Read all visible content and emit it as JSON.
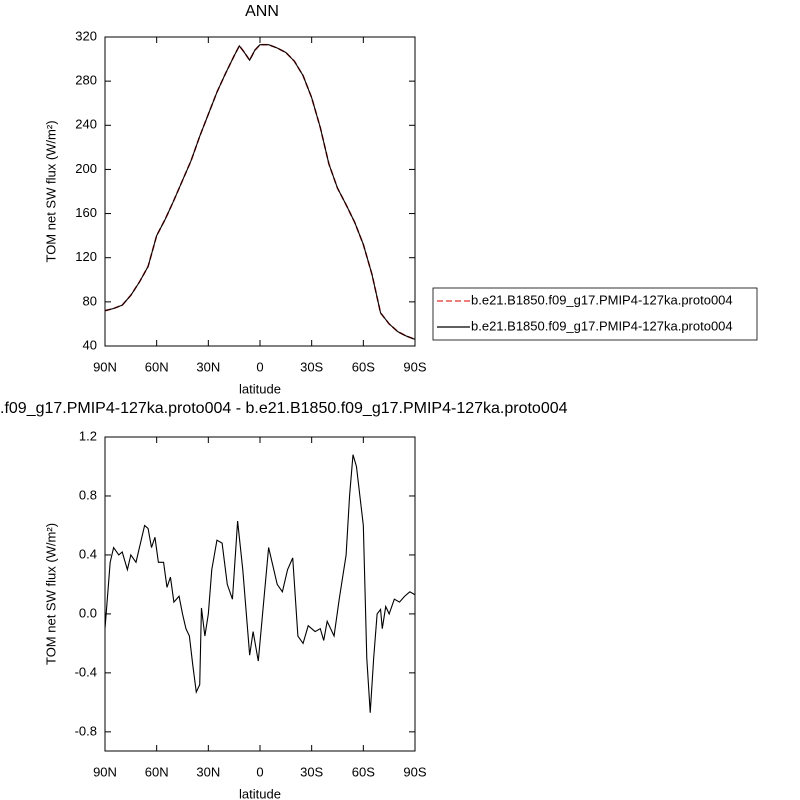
{
  "chart_data": [
    {
      "type": "line",
      "title": "ANN",
      "xlabel": "latitude",
      "ylabel": "TOM net SW flux (W/m²)",
      "x": [
        90,
        85,
        80,
        75,
        70,
        65,
        60,
        55,
        50,
        45,
        40,
        35,
        30,
        25,
        20,
        15,
        12,
        10,
        6,
        3,
        0,
        -5,
        -10,
        -15,
        -20,
        -25,
        -30,
        -35,
        -40,
        -45,
        -50,
        -55,
        -60,
        -65,
        -70,
        -75,
        -80,
        -85,
        -90
      ],
      "series": [
        {
          "name": "b.e21.B1850.f09_g17.PMIP4-127ka.proto004",
          "color": "#e03030",
          "dash": true,
          "values": [
            72,
            74,
            77,
            86,
            98,
            112,
            140,
            155,
            172,
            190,
            208,
            230,
            250,
            270,
            287,
            303,
            312,
            308,
            299,
            308,
            313,
            313,
            310,
            306,
            298,
            285,
            265,
            238,
            205,
            183,
            168,
            152,
            132,
            105,
            70,
            60,
            53,
            49,
            46
          ]
        },
        {
          "name": "b.e21.B1850.f09_g17.PMIP4-127ka.proto004",
          "color": "#000000",
          "dash": false,
          "values": [
            72,
            74,
            77,
            86,
            98,
            112,
            140,
            155,
            172,
            190,
            208,
            230,
            250,
            270,
            287,
            303,
            312,
            308,
            299,
            308,
            313,
            313,
            310,
            306,
            298,
            285,
            265,
            238,
            205,
            183,
            168,
            152,
            132,
            105,
            70,
            60,
            53,
            49,
            46
          ]
        }
      ],
      "xlim": [
        90,
        -90
      ],
      "xticks": [
        {
          "value": 90,
          "label": "90N"
        },
        {
          "value": 60,
          "label": "60N"
        },
        {
          "value": 30,
          "label": "30N"
        },
        0,
        {
          "value": -30,
          "label": "30S"
        },
        {
          "value": -60,
          "label": "60S"
        },
        {
          "value": -90,
          "label": "90S"
        }
      ],
      "ylim": [
        40,
        320
      ],
      "yticks": [
        40,
        80,
        120,
        160,
        200,
        240,
        280,
        320
      ],
      "legend": "right"
    },
    {
      "type": "line",
      "title": ".f09_g17.PMIP4-127ka.proto004 - b.e21.B1850.f09_g17.PMIP4-127ka.proto004",
      "xlabel": "latitude",
      "ylabel": "TOM net SW flux (W/m²)",
      "x": [
        90,
        87,
        85,
        82,
        80,
        77,
        75,
        72,
        70,
        67,
        65,
        63,
        61,
        59,
        56,
        54,
        52,
        50,
        47,
        45,
        43,
        41,
        39,
        37,
        35,
        34,
        32,
        30,
        28,
        25,
        22,
        19,
        16,
        13,
        10,
        6,
        4,
        1,
        -5,
        -7,
        -10,
        -13,
        -16,
        -19,
        -22,
        -25,
        -28,
        -32,
        -35,
        -37,
        -39,
        -43,
        -46,
        -50,
        -52,
        -54,
        -56,
        -59,
        -60,
        -62,
        -64,
        -66,
        -68,
        -70,
        -71,
        -73,
        -75,
        -78,
        -81,
        -84,
        -87,
        -90
      ],
      "series": [
        {
          "color": "#000000",
          "dash": false,
          "values": [
            -0.1,
            0.35,
            0.45,
            0.4,
            0.42,
            0.3,
            0.4,
            0.35,
            0.45,
            0.6,
            0.58,
            0.45,
            0.52,
            0.35,
            0.35,
            0.18,
            0.25,
            0.08,
            0.12,
            0.0,
            -0.1,
            -0.15,
            -0.35,
            -0.53,
            -0.48,
            0.04,
            -0.15,
            0.0,
            0.3,
            0.5,
            0.48,
            0.2,
            0.1,
            0.63,
            0.3,
            -0.28,
            -0.12,
            -0.32,
            0.45,
            0.35,
            0.2,
            0.15,
            0.3,
            0.38,
            -0.15,
            -0.2,
            -0.08,
            -0.12,
            -0.1,
            -0.18,
            -0.05,
            -0.15,
            0.1,
            0.4,
            0.8,
            1.08,
            1.0,
            0.7,
            0.6,
            -0.3,
            -0.67,
            -0.3,
            0.0,
            0.03,
            -0.1,
            0.05,
            0.0,
            0.1,
            0.08,
            0.12,
            0.15,
            0.13
          ]
        }
      ],
      "xlim": [
        90,
        -90
      ],
      "xticks": [
        {
          "value": 90,
          "label": "90N"
        },
        {
          "value": 60,
          "label": "60N"
        },
        {
          "value": 30,
          "label": "30N"
        },
        0,
        {
          "value": -30,
          "label": "30S"
        },
        {
          "value": -60,
          "label": "60S"
        },
        {
          "value": -90,
          "label": "90S"
        }
      ],
      "ylim": [
        -0.93,
        1.2
      ],
      "yticks": [
        -0.8,
        -0.4,
        {
          "value": 0,
          "label": "0.0"
        },
        0.4,
        0.8,
        1.2
      ]
    }
  ]
}
